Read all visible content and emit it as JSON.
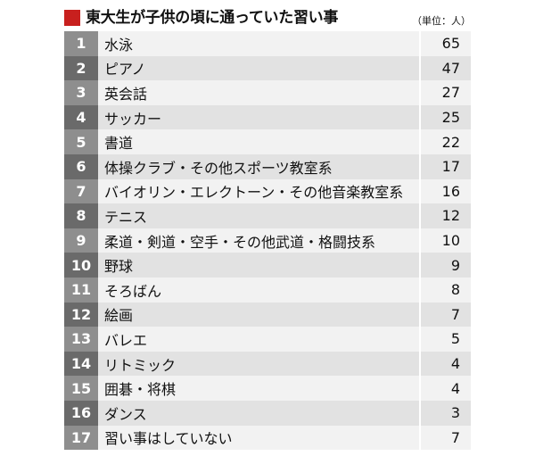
{
  "header": {
    "title": "東大生が子供の頃に通っていた習い事",
    "unit": "（単位：人）",
    "accent_color": "#c8201e"
  },
  "chart_data": {
    "type": "table",
    "title": "東大生が子供の頃に通っていた習い事",
    "unit": "（単位：人）",
    "rows": [
      {
        "rank": "1",
        "name": "水泳",
        "value": "65"
      },
      {
        "rank": "2",
        "name": "ピアノ",
        "value": "47"
      },
      {
        "rank": "3",
        "name": "英会話",
        "value": "27"
      },
      {
        "rank": "4",
        "name": "サッカー",
        "value": "25"
      },
      {
        "rank": "5",
        "name": "書道",
        "value": "22"
      },
      {
        "rank": "6",
        "name": "体操クラブ・その他スポーツ教室系",
        "value": "17"
      },
      {
        "rank": "7",
        "name": "バイオリン・エレクトーン・その他音楽教室系",
        "value": "16"
      },
      {
        "rank": "8",
        "name": "テニス",
        "value": "12"
      },
      {
        "rank": "9",
        "name": "柔道・剣道・空手・その他武道・格闘技系",
        "value": "10"
      },
      {
        "rank": "10",
        "name": "野球",
        "value": "9"
      },
      {
        "rank": "11",
        "name": "そろばん",
        "value": "8"
      },
      {
        "rank": "12",
        "name": "絵画",
        "value": "7"
      },
      {
        "rank": "13",
        "name": "バレエ",
        "value": "5"
      },
      {
        "rank": "14",
        "name": "リトミック",
        "value": "4"
      },
      {
        "rank": "15",
        "name": "囲碁・将棋",
        "value": "4"
      },
      {
        "rank": "16",
        "name": "ダンス",
        "value": "3"
      },
      {
        "rank": "17",
        "name": "習い事はしていない",
        "value": "7"
      }
    ]
  }
}
